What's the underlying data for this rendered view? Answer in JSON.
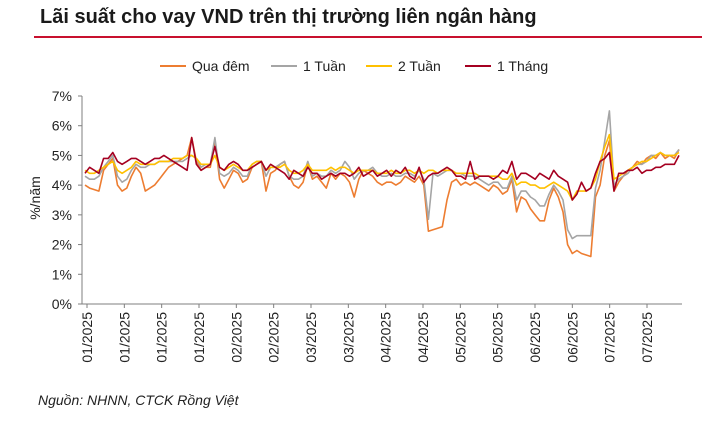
{
  "title": "Lãi suất cho vay VND trên thị trường liên ngân hàng",
  "source": "Nguồn: NHNN, CTCK Rồng Việt",
  "colors": {
    "title_rule": "#c8102e",
    "axis": "#7f7f7f"
  },
  "chart_data": {
    "type": "line",
    "ylabel": "%/năm",
    "ylim": [
      0,
      7
    ],
    "yticks": [
      "0%",
      "1%",
      "2%",
      "3%",
      "4%",
      "5%",
      "6%",
      "7%"
    ],
    "xticks": [
      "01/2025",
      "01/2025",
      "01/2025",
      "01/2025",
      "02/2025",
      "02/2025",
      "03/2025",
      "03/2025",
      "04/2025",
      "04/2025",
      "05/2025",
      "05/2025",
      "06/2025",
      "06/2025",
      "07/2025",
      "07/2025"
    ],
    "legend_position": "top",
    "grid": false,
    "series": [
      {
        "name": "Qua đêm",
        "color": "#ed7d31",
        "values": [
          4.0,
          3.9,
          3.85,
          3.8,
          4.5,
          4.7,
          4.9,
          4.0,
          3.8,
          3.9,
          4.3,
          4.6,
          4.4,
          3.8,
          3.9,
          4.0,
          4.2,
          4.4,
          4.6,
          4.7,
          4.8,
          4.9,
          5.0,
          5.6,
          4.8,
          4.5,
          4.6,
          4.6,
          5.5,
          4.2,
          3.9,
          4.2,
          4.5,
          4.4,
          4.1,
          4.2,
          4.6,
          4.7,
          4.8,
          3.8,
          4.4,
          4.5,
          4.7,
          4.8,
          4.3,
          4.0,
          3.9,
          4.1,
          4.7,
          4.2,
          4.3,
          4.1,
          3.9,
          4.4,
          4.2,
          4.4,
          4.3,
          4.1,
          3.6,
          4.2,
          4.5,
          4.4,
          4.3,
          4.1,
          4.0,
          4.1,
          4.1,
          4.0,
          4.1,
          4.3,
          4.2,
          4.1,
          4.3,
          4.0,
          2.45,
          2.5,
          2.55,
          2.6,
          3.5,
          4.1,
          4.2,
          4.0,
          4.1,
          4.0,
          4.1,
          4.0,
          3.9,
          3.8,
          4.0,
          3.9,
          3.7,
          3.8,
          4.2,
          3.1,
          3.6,
          3.5,
          3.2,
          3.0,
          2.8,
          2.8,
          3.5,
          3.9,
          3.6,
          3.1,
          2.0,
          1.7,
          1.8,
          1.7,
          1.65,
          1.6,
          3.6,
          4.0,
          5.0,
          5.5,
          3.8,
          4.1,
          4.3,
          4.5,
          4.6,
          4.8,
          4.7,
          4.9,
          5.0,
          4.9,
          5.1,
          4.9,
          5.0,
          4.9,
          5.2
        ]
      },
      {
        "name": "1 Tuần",
        "color": "#a5a5a5",
        "values": [
          4.3,
          4.2,
          4.2,
          4.3,
          4.6,
          4.8,
          5.0,
          4.3,
          4.1,
          4.2,
          4.5,
          4.7,
          4.6,
          4.6,
          4.7,
          4.7,
          4.8,
          4.8,
          4.8,
          4.8,
          4.8,
          4.8,
          4.9,
          5.0,
          4.9,
          4.6,
          4.7,
          4.7,
          5.6,
          4.4,
          4.3,
          4.4,
          4.6,
          4.5,
          4.3,
          4.3,
          4.7,
          4.8,
          4.8,
          4.3,
          4.6,
          4.6,
          4.7,
          4.8,
          4.3,
          4.2,
          4.2,
          4.3,
          4.8,
          4.3,
          4.4,
          4.3,
          4.3,
          4.5,
          4.4,
          4.5,
          4.8,
          4.6,
          4.2,
          4.4,
          4.5,
          4.5,
          4.6,
          4.4,
          4.3,
          4.3,
          4.4,
          4.3,
          4.3,
          4.4,
          4.4,
          4.3,
          4.5,
          4.2,
          2.85,
          4.4,
          4.3,
          4.4,
          4.5,
          4.5,
          4.4,
          4.4,
          4.3,
          4.3,
          4.3,
          4.2,
          4.1,
          4.0,
          4.1,
          4.1,
          3.9,
          3.9,
          4.3,
          3.5,
          3.8,
          3.8,
          3.6,
          3.5,
          3.3,
          3.3,
          3.7,
          4.0,
          3.8,
          3.5,
          2.5,
          2.2,
          2.3,
          2.3,
          2.3,
          2.3,
          3.9,
          4.5,
          5.5,
          6.5,
          4.0,
          4.2,
          4.3,
          4.4,
          4.6,
          4.7,
          4.7,
          4.8,
          5.0,
          5.0,
          5.1,
          5.0,
          5.0,
          5.0,
          5.2
        ]
      },
      {
        "name": "2 Tuần",
        "color": "#ffc000",
        "values": [
          4.5,
          4.4,
          4.4,
          4.5,
          4.6,
          4.7,
          4.8,
          4.5,
          4.4,
          4.5,
          4.6,
          4.8,
          4.7,
          4.7,
          4.7,
          4.7,
          4.8,
          4.8,
          4.8,
          4.9,
          4.9,
          4.9,
          5.0,
          5.0,
          4.9,
          4.7,
          4.7,
          4.7,
          5.0,
          4.6,
          4.5,
          4.6,
          4.7,
          4.6,
          4.5,
          4.5,
          4.7,
          4.8,
          4.8,
          4.5,
          4.6,
          4.6,
          4.6,
          4.7,
          4.5,
          4.4,
          4.4,
          4.5,
          4.7,
          4.5,
          4.5,
          4.5,
          4.5,
          4.6,
          4.5,
          4.6,
          4.6,
          4.5,
          4.4,
          4.5,
          4.5,
          4.5,
          4.5,
          4.4,
          4.4,
          4.4,
          4.5,
          4.4,
          4.4,
          4.5,
          4.5,
          4.4,
          4.5,
          4.4,
          4.5,
          4.5,
          4.4,
          4.5,
          4.5,
          4.5,
          4.4,
          4.4,
          4.4,
          4.4,
          4.4,
          4.3,
          4.3,
          4.3,
          4.3,
          4.3,
          4.2,
          4.2,
          4.4,
          4.0,
          4.1,
          4.1,
          4.0,
          4.0,
          3.9,
          3.9,
          4.0,
          4.1,
          4.0,
          3.9,
          3.8,
          3.5,
          3.8,
          3.8,
          3.8,
          3.9,
          4.2,
          4.8,
          5.3,
          5.7,
          4.2,
          4.3,
          4.4,
          4.5,
          4.6,
          4.7,
          4.8,
          4.8,
          4.9,
          5.0,
          5.1,
          5.0,
          5.0,
          5.0,
          5.1
        ]
      },
      {
        "name": "1 Tháng",
        "color": "#a50021",
        "values": [
          4.4,
          4.6,
          4.5,
          4.4,
          4.9,
          4.9,
          5.1,
          4.8,
          4.7,
          4.8,
          4.9,
          4.9,
          4.8,
          4.7,
          4.8,
          4.9,
          4.9,
          5.0,
          4.9,
          4.8,
          4.7,
          4.6,
          4.5,
          5.6,
          4.7,
          4.5,
          4.6,
          4.7,
          5.3,
          4.6,
          4.5,
          4.7,
          4.8,
          4.7,
          4.5,
          4.5,
          4.6,
          4.7,
          4.8,
          4.5,
          4.7,
          4.6,
          4.5,
          4.4,
          4.2,
          4.5,
          4.4,
          4.3,
          4.6,
          4.4,
          4.4,
          4.2,
          4.3,
          4.4,
          4.3,
          4.4,
          4.4,
          4.3,
          4.4,
          4.6,
          4.3,
          4.4,
          4.5,
          4.3,
          4.4,
          4.5,
          4.3,
          4.5,
          4.4,
          4.6,
          4.3,
          4.2,
          4.6,
          4.1,
          4.3,
          4.4,
          4.4,
          4.5,
          4.6,
          4.5,
          4.3,
          4.3,
          4.2,
          4.8,
          4.2,
          4.3,
          4.3,
          4.3,
          4.2,
          4.3,
          4.5,
          4.4,
          4.8,
          4.2,
          4.4,
          4.4,
          4.3,
          4.2,
          4.4,
          4.3,
          4.2,
          4.5,
          4.3,
          4.2,
          4.1,
          3.5,
          3.7,
          4.1,
          3.8,
          3.9,
          4.4,
          4.8,
          4.9,
          5.1,
          3.8,
          4.4,
          4.4,
          4.5,
          4.5,
          4.6,
          4.4,
          4.5,
          4.5,
          4.6,
          4.6,
          4.7,
          4.7,
          4.7,
          5.0
        ]
      }
    ]
  }
}
